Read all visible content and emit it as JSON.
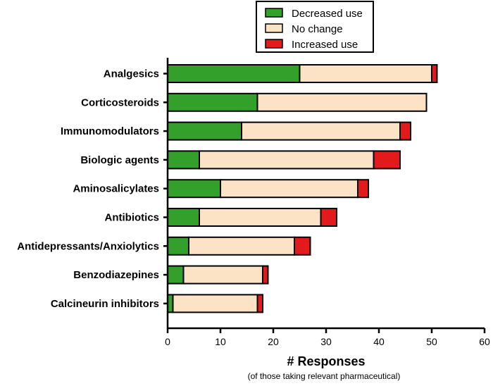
{
  "chart_data": {
    "type": "bar",
    "orientation": "horizontal",
    "stacked": true,
    "title": "",
    "xlabel": "# Responses",
    "xlabel_sub": "(of those taking relevant pharmaceutical)",
    "ylabel": "",
    "xlim": [
      0,
      60
    ],
    "xticks": [
      0,
      10,
      20,
      30,
      40,
      50,
      60
    ],
    "grid": false,
    "legend_position": "top-center",
    "categories": [
      "Analgesics",
      "Corticosteroids",
      "Immunomodulators",
      "Biologic agents",
      "Aminosalicylates",
      "Antibiotics",
      "Antidepressants/Anxiolytics",
      "Benzodiazepines",
      "Calcineurin inhibitors"
    ],
    "series": [
      {
        "name": "Decreased use",
        "color": "#33a02c",
        "values": [
          25,
          17,
          14,
          6,
          10,
          6,
          4,
          3,
          1
        ]
      },
      {
        "name": "No change",
        "color": "#fde3c6",
        "values": [
          25,
          32,
          30,
          33,
          26,
          23,
          20,
          15,
          16
        ]
      },
      {
        "name": "Increased use",
        "color": "#e31a1c",
        "values": [
          1,
          0,
          2,
          5,
          2,
          3,
          3,
          1,
          1
        ]
      }
    ]
  }
}
